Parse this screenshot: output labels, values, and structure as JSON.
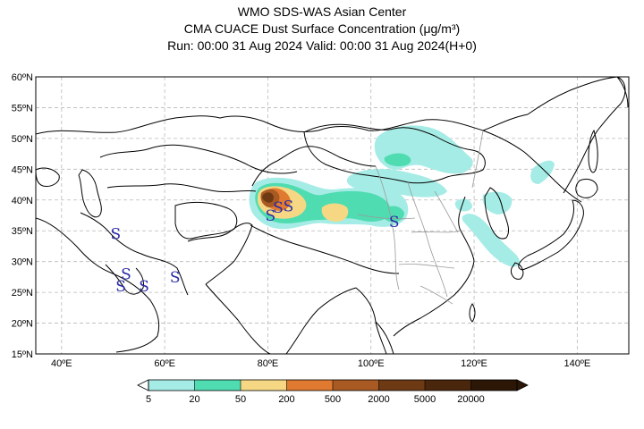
{
  "title": {
    "line1": "WMO SDS-WAS Asian Center",
    "line2": "CMA CUACE Dust Surface Concentration (μg/m³)",
    "line3": "Run: 00:00 31 Aug 2024    Valid: 00:00 31 Aug 2024(H+0)"
  },
  "map": {
    "lon_range": [
      35,
      150
    ],
    "lat_range": [
      15,
      60
    ],
    "lon_ticks": [
      {
        "value": 40,
        "label": "40ºE"
      },
      {
        "value": 60,
        "label": "60ºE"
      },
      {
        "value": 80,
        "label": "80ºE"
      },
      {
        "value": 100,
        "label": "100ºE"
      },
      {
        "value": 120,
        "label": "120ºE"
      },
      {
        "value": 140,
        "label": "140ºE"
      }
    ],
    "lat_ticks": [
      {
        "value": 60,
        "label": "60ºN"
      },
      {
        "value": 55,
        "label": "55ºN"
      },
      {
        "value": 50,
        "label": "50ºN"
      },
      {
        "value": 45,
        "label": "45ºN"
      },
      {
        "value": 40,
        "label": "40ºN"
      },
      {
        "value": 35,
        "label": "35ºN"
      },
      {
        "value": 30,
        "label": "30ºN"
      },
      {
        "value": 25,
        "label": "25ºN"
      },
      {
        "value": 20,
        "label": "20ºN"
      },
      {
        "value": 15,
        "label": "15ºN"
      }
    ],
    "grid": true,
    "dust_symbol": "S",
    "dust_symbol_color": "#2a2aa8",
    "dust_symbols": [
      {
        "lon": 50.5,
        "lat": 34.5
      },
      {
        "lon": 52.5,
        "lat": 28.0
      },
      {
        "lon": 51.5,
        "lat": 26.0
      },
      {
        "lon": 56.0,
        "lat": 26.0
      },
      {
        "lon": 62.0,
        "lat": 27.5
      },
      {
        "lon": 80.5,
        "lat": 37.5
      },
      {
        "lon": 82.0,
        "lat": 38.8
      },
      {
        "lon": 84.0,
        "lat": 39.0
      },
      {
        "lon": 104.5,
        "lat": 36.5
      }
    ]
  },
  "colorbar": {
    "labels": [
      "5",
      "20",
      "50",
      "200",
      "500",
      "2000",
      "5000",
      "20000"
    ],
    "colors": [
      "#a6ece6",
      "#4fdcb0",
      "#f6d884",
      "#e07a30",
      "#a85a22",
      "#6e3a14",
      "#4a260c",
      "#2c1606"
    ]
  }
}
